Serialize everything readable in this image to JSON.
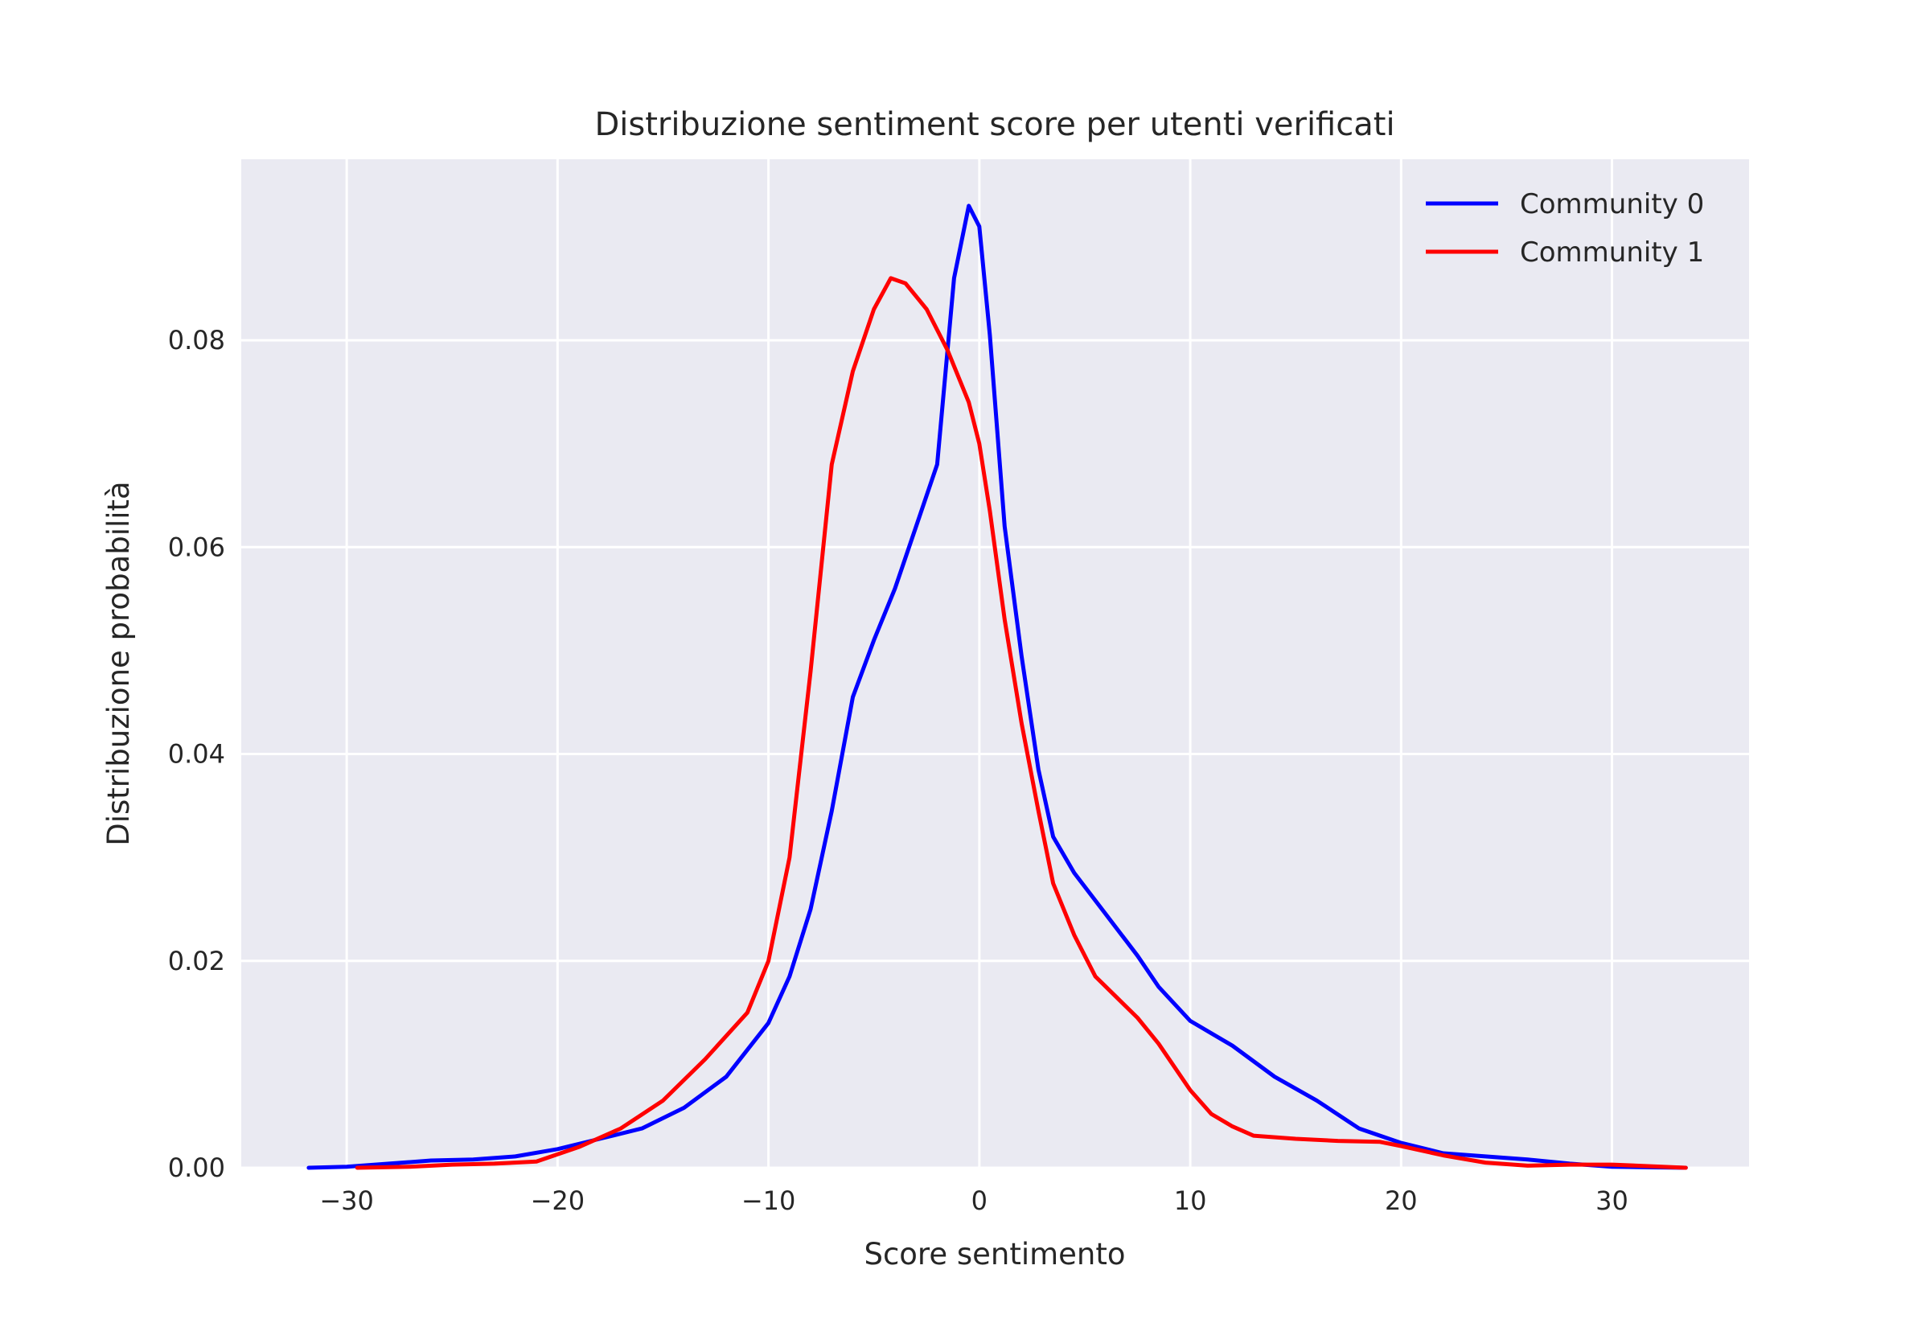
{
  "chart_data": {
    "type": "line",
    "title": "Distribuzione sentiment score per utenti verificati",
    "xlabel": "Score sentimento",
    "ylabel": "Distribuzione probabilità",
    "xlim": [
      -35,
      36.5
    ],
    "ylim": [
      0,
      0.0975
    ],
    "xticks": [
      -30,
      -20,
      -10,
      0,
      10,
      20,
      30
    ],
    "xtick_labels": [
      "−30",
      "−20",
      "−10",
      "0",
      "10",
      "20",
      "30"
    ],
    "yticks": [
      0,
      0.02,
      0.04,
      0.06,
      0.08
    ],
    "ytick_labels": [
      "0.00",
      "0.02",
      "0.04",
      "0.06",
      "0.08"
    ],
    "grid": true,
    "legend_position": "top-right",
    "background_color": "#eaeaf2",
    "grid_color": "#ffffff",
    "series": [
      {
        "name": "Community 0",
        "color": "#0000ff",
        "points": [
          [
            -31.8,
            0.0
          ],
          [
            -30,
            0.0001
          ],
          [
            -28,
            0.0004
          ],
          [
            -26,
            0.0007
          ],
          [
            -24,
            0.0008
          ],
          [
            -22,
            0.0011
          ],
          [
            -20,
            0.0018
          ],
          [
            -18,
            0.0028
          ],
          [
            -16,
            0.0038
          ],
          [
            -14,
            0.0058
          ],
          [
            -12,
            0.0088
          ],
          [
            -10,
            0.014
          ],
          [
            -9,
            0.0185
          ],
          [
            -8,
            0.025
          ],
          [
            -7,
            0.0345
          ],
          [
            -6,
            0.0455
          ],
          [
            -5,
            0.051
          ],
          [
            -4,
            0.056
          ],
          [
            -3,
            0.062
          ],
          [
            -2,
            0.068
          ],
          [
            -1.2,
            0.086
          ],
          [
            -0.5,
            0.093
          ],
          [
            0,
            0.091
          ],
          [
            0.5,
            0.0805
          ],
          [
            1.2,
            0.062
          ],
          [
            2,
            0.0495
          ],
          [
            2.8,
            0.0385
          ],
          [
            3.5,
            0.032
          ],
          [
            4.5,
            0.0285
          ],
          [
            6,
            0.0245
          ],
          [
            7.5,
            0.0205
          ],
          [
            8.5,
            0.0175
          ],
          [
            10,
            0.0142
          ],
          [
            12,
            0.0118
          ],
          [
            14,
            0.0088
          ],
          [
            16,
            0.0065
          ],
          [
            18,
            0.0038
          ],
          [
            20,
            0.0024
          ],
          [
            22,
            0.0014
          ],
          [
            24,
            0.0011
          ],
          [
            26,
            0.0008
          ],
          [
            28,
            0.0004
          ],
          [
            30,
            0.0001
          ],
          [
            33.5,
            0.0
          ]
        ]
      },
      {
        "name": "Community 1",
        "color": "#ff0000",
        "points": [
          [
            -29.5,
            0.0
          ],
          [
            -27,
            0.0001
          ],
          [
            -25,
            0.0003
          ],
          [
            -23,
            0.0004
          ],
          [
            -21,
            0.0006
          ],
          [
            -19,
            0.002
          ],
          [
            -17,
            0.0038
          ],
          [
            -15,
            0.0065
          ],
          [
            -13,
            0.0105
          ],
          [
            -11,
            0.015
          ],
          [
            -10,
            0.02
          ],
          [
            -9,
            0.03
          ],
          [
            -8,
            0.048
          ],
          [
            -7,
            0.068
          ],
          [
            -6,
            0.077
          ],
          [
            -5,
            0.083
          ],
          [
            -4.2,
            0.086
          ],
          [
            -3.5,
            0.0855
          ],
          [
            -2.5,
            0.083
          ],
          [
            -1.5,
            0.079
          ],
          [
            -0.5,
            0.074
          ],
          [
            0,
            0.07
          ],
          [
            0.5,
            0.0635
          ],
          [
            1.2,
            0.053
          ],
          [
            2,
            0.043
          ],
          [
            2.8,
            0.0345
          ],
          [
            3.5,
            0.0275
          ],
          [
            4.5,
            0.0225
          ],
          [
            5.5,
            0.0185
          ],
          [
            6.5,
            0.0165
          ],
          [
            7.5,
            0.0145
          ],
          [
            8.5,
            0.012
          ],
          [
            10,
            0.0075
          ],
          [
            11,
            0.0052
          ],
          [
            12,
            0.004
          ],
          [
            13,
            0.0031
          ],
          [
            15,
            0.0028
          ],
          [
            17,
            0.0026
          ],
          [
            19,
            0.0025
          ],
          [
            20,
            0.0021
          ],
          [
            22,
            0.0012
          ],
          [
            24,
            0.0005
          ],
          [
            26,
            0.0002
          ],
          [
            28,
            0.0003
          ],
          [
            30,
            0.0003
          ],
          [
            33.5,
            0.0
          ]
        ]
      }
    ]
  }
}
